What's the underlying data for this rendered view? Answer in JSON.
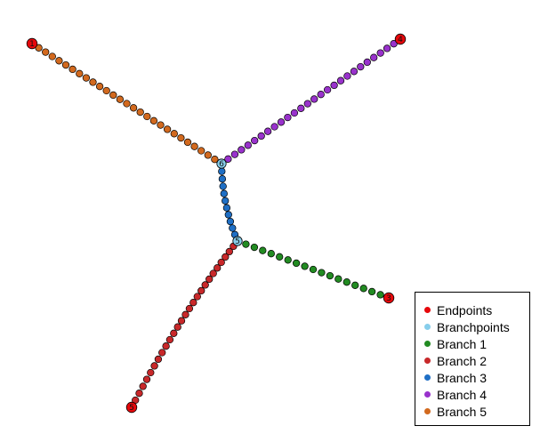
{
  "nodes": [
    {
      "id": "endpoint-1",
      "label": "1",
      "type": "endpoint",
      "color": "#e6070b"
    },
    {
      "id": "endpoint-2",
      "label": "2",
      "type": "endpoint",
      "color": "#e6070b"
    },
    {
      "id": "endpoint-3",
      "label": "3",
      "type": "endpoint",
      "color": "#e6070b"
    },
    {
      "id": "endpoint-4",
      "label": "4",
      "type": "endpoint",
      "color": "#e6070b"
    },
    {
      "id": "endpoint-5",
      "label": "5",
      "type": "endpoint",
      "color": "#e6070b"
    },
    {
      "id": "branchpoint-5",
      "label": "5",
      "type": "branchpoint",
      "color": "#87ceeb"
    },
    {
      "id": "branchpoint-6",
      "label": "6",
      "type": "branchpoint",
      "color": "#87ceeb"
    }
  ],
  "branches": [
    {
      "name": "Branch  1",
      "color": "#228b22",
      "from": "branchpoint-5",
      "to": "endpoint-3",
      "points": 17
    },
    {
      "name": "Branch  2",
      "color": "#c8282a",
      "from": "branchpoint-5",
      "to": "endpoint-5",
      "points": 26
    },
    {
      "name": "Branch  3",
      "color": "#1f6fc5",
      "from": "branchpoint-6",
      "to": "branchpoint-5",
      "points": 10
    },
    {
      "name": "Branch  4",
      "color": "#9932cc",
      "from": "branchpoint-6",
      "to": "endpoint-4",
      "points": 26
    },
    {
      "name": "Branch  5",
      "color": "#d2691e",
      "from": "branchpoint-6",
      "to": "endpoint-1",
      "points": 27
    }
  ],
  "legend": {
    "items": [
      {
        "label": "Endpoints",
        "color": "#e6070b"
      },
      {
        "label": "Branchpoints",
        "color": "#87ceeb"
      },
      {
        "label": "Branch  1",
        "color": "#228b22"
      },
      {
        "label": "Branch  2",
        "color": "#c8282a"
      },
      {
        "label": "Branch  3",
        "color": "#1f6fc5"
      },
      {
        "label": "Branch  4",
        "color": "#9932cc"
      },
      {
        "label": "Branch  5",
        "color": "#d2691e"
      }
    ]
  }
}
